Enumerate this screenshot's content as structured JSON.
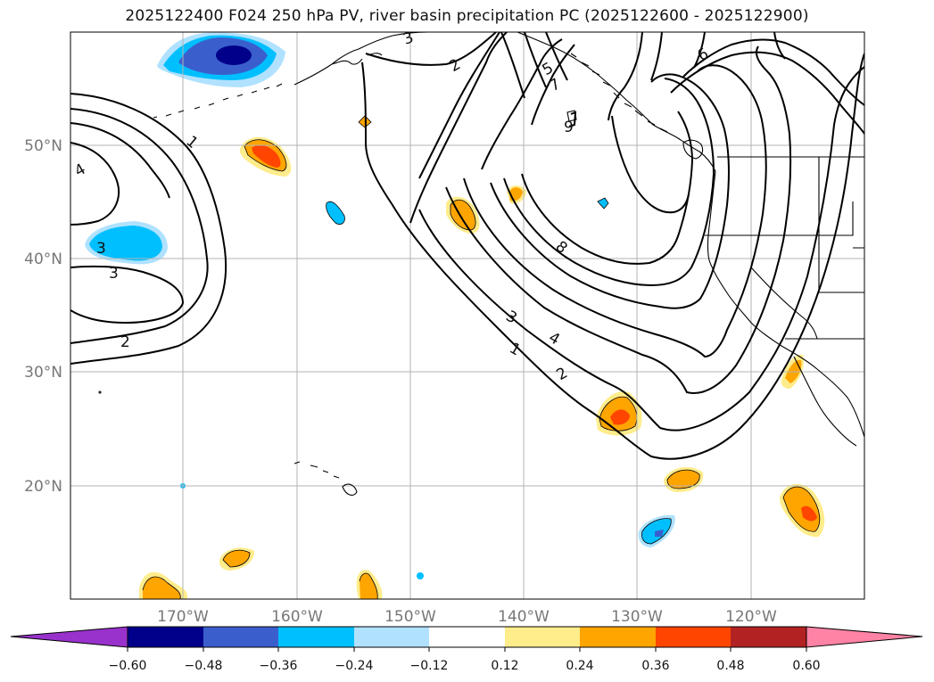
{
  "title": "2025122400 F024 250 hPa PV, river basin precipitation PC (2025122600 - 2025122900)",
  "lon_labels": [
    "170°W",
    "160°W",
    "150°W",
    "140°W",
    "130°W",
    "120°W"
  ],
  "lat_labels": [
    "50°N",
    "40°N",
    "30°N",
    "20°N"
  ],
  "colorbar": {
    "tick_labels": [
      "−0.60",
      "−0.48",
      "−0.36",
      "−0.24",
      "−0.12",
      "0.12",
      "0.24",
      "0.36",
      "0.48",
      "0.60"
    ],
    "colors": [
      "#9932cc",
      "#00008b",
      "#3a5fcd",
      "#00bfff",
      "#b0e2ff",
      "#ffffff",
      "#ffec8b",
      "#ffa500",
      "#ff4500",
      "#b22222",
      "#ff83a5"
    ]
  },
  "contour_labels": [
    "1",
    "2",
    "3",
    "4",
    "5",
    "6",
    "7",
    "8",
    "9"
  ],
  "map": {
    "projection": "lat-lon",
    "lon_range": [
      "180°W",
      "110°W"
    ],
    "lat_range": [
      "10°N",
      "60°N"
    ],
    "gridlines": true,
    "contour_field": "250 hPa PV",
    "shaded_field": "river basin precipitation PC"
  }
}
